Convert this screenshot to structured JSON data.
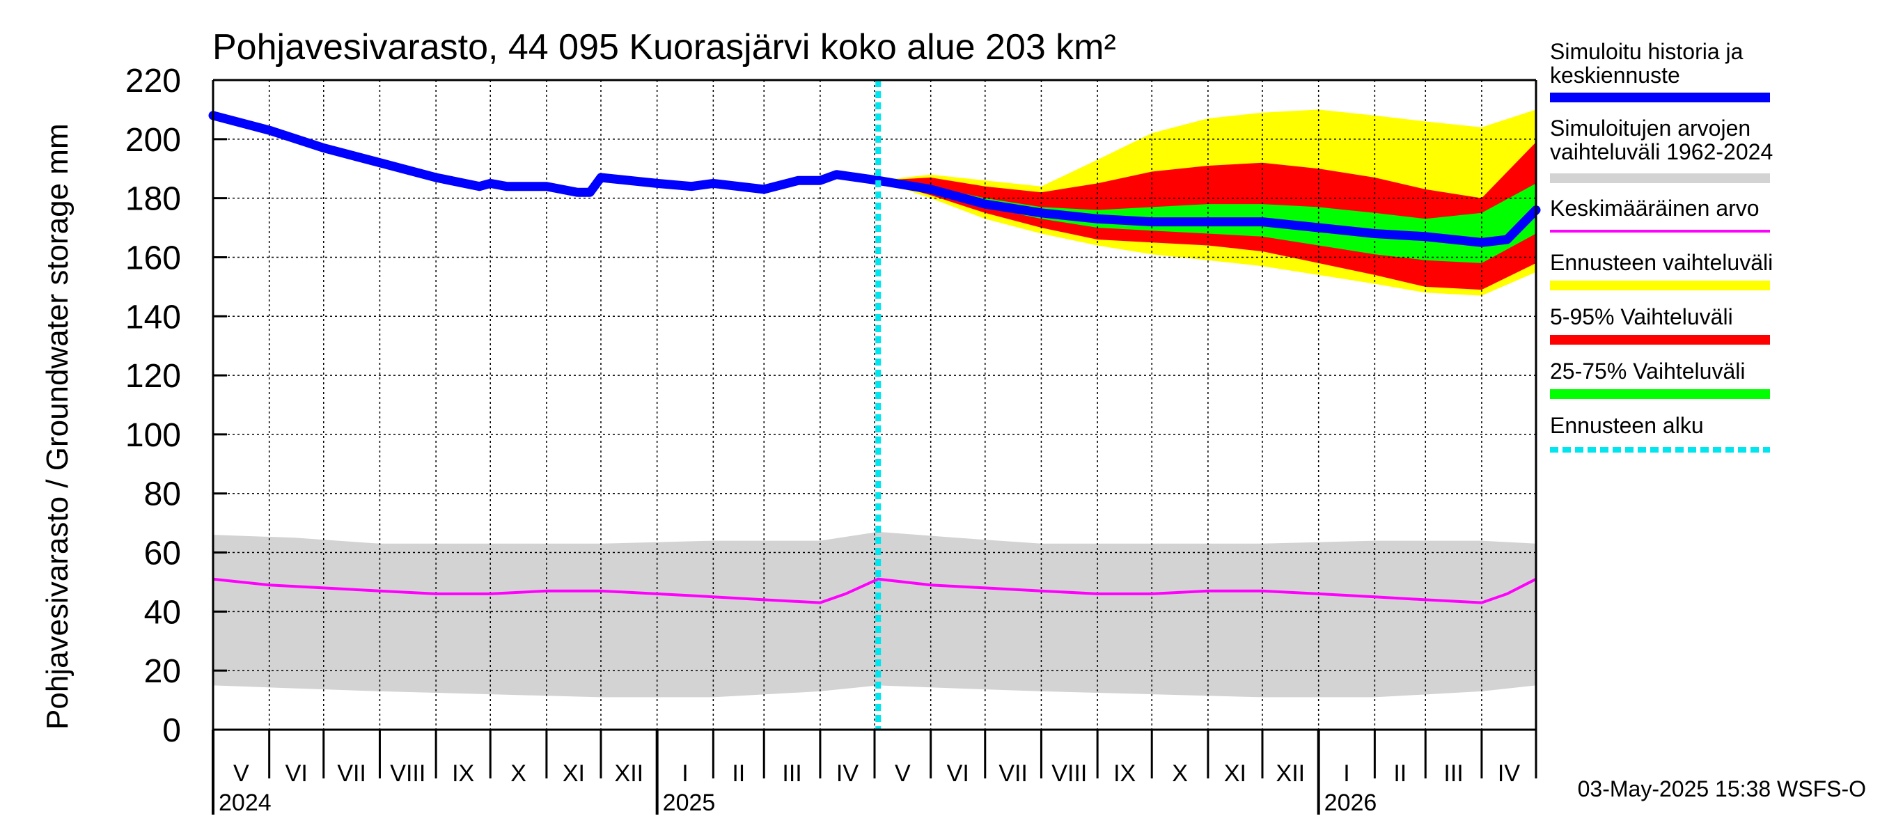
{
  "chart_data": {
    "type": "area",
    "title": "Pohjavesivarasto, 44 095 Kuorasjärvi koko alue 203 km²",
    "ylabel": "Pohjavesivarasto / Groundwater storage   mm",
    "ylim": [
      0,
      220
    ],
    "yticks": [
      "0",
      "20",
      "40",
      "60",
      "80",
      "100",
      "120",
      "140",
      "160",
      "180",
      "200",
      "220"
    ],
    "x_start": "2024-05-01",
    "x_end": "2026-05-01",
    "forecast_start": "2025-05-03",
    "grid": true,
    "months": [
      "V",
      "VI",
      "VII",
      "VIII",
      "IX",
      "X",
      "XI",
      "XII",
      "I",
      "II",
      "III",
      "IV",
      "V",
      "VI",
      "VII",
      "VIII",
      "IX",
      "X",
      "XI",
      "XII",
      "I",
      "II",
      "III",
      "IV"
    ],
    "years": [
      "2024",
      "2025",
      "2026"
    ],
    "legend_position": "right",
    "legend": [
      {
        "label": "Simuloitu historia ja keskiennuste",
        "color": "#0000ff",
        "style": "thick"
      },
      {
        "label": "Simuloitujen arvojen vaihteluväli 1962-2024",
        "color": "#d3d3d3",
        "style": "band"
      },
      {
        "label": "Keskimääräinen arvo",
        "color": "#ff00ff",
        "style": "line"
      },
      {
        "label": "Ennusteen vaihteluväli",
        "color": "#ffff00",
        "style": "band"
      },
      {
        "label": "5-95% Vaihteluväli",
        "color": "#ff0000",
        "style": "band"
      },
      {
        "label": "25-75% Vaihteluväli",
        "color": "#00ff00",
        "style": "band"
      },
      {
        "label": "Ennusteen alku",
        "color": "#00e5ee",
        "style": "dashed"
      }
    ],
    "series": [
      {
        "name": "Simuloitu historia ja keskiennuste",
        "x": [
          "2024-05-01",
          "2024-06-01",
          "2024-07-01",
          "2024-08-01",
          "2024-09-01",
          "2024-09-25",
          "2024-10-01",
          "2024-10-10",
          "2024-11-01",
          "2024-11-18",
          "2024-11-25",
          "2024-12-01",
          "2025-01-01",
          "2025-01-20",
          "2025-02-01",
          "2025-03-01",
          "2025-03-20",
          "2025-04-01",
          "2025-04-10",
          "2025-05-03",
          "2025-06-01",
          "2025-07-01",
          "2025-08-01",
          "2025-09-01",
          "2025-10-01",
          "2025-11-01",
          "2025-12-01",
          "2026-01-01",
          "2026-02-01",
          "2026-03-01",
          "2026-04-01",
          "2026-04-15",
          "2026-05-01"
        ],
        "y": [
          208,
          203,
          197,
          192,
          187,
          184,
          185,
          184,
          184,
          182,
          182,
          187,
          185,
          184,
          185,
          183,
          186,
          186,
          188,
          186,
          183,
          178,
          175,
          173,
          172,
          172,
          172,
          170,
          168,
          167,
          165,
          166,
          176
        ]
      },
      {
        "name": "Simuloitujen arvojen vaihteluväli 1962-2024 (yläraja)",
        "x": [
          "2024-05-01",
          "2024-06-15",
          "2024-08-01",
          "2024-10-01",
          "2024-12-01",
          "2025-02-01",
          "2025-04-01",
          "2025-05-03",
          "2025-06-15",
          "2025-08-01",
          "2025-10-01",
          "2025-12-01",
          "2026-02-01",
          "2026-04-01",
          "2026-05-01"
        ],
        "y": [
          66,
          65,
          63,
          63,
          63,
          64,
          64,
          67,
          65,
          63,
          63,
          63,
          64,
          64,
          63
        ]
      },
      {
        "name": "Simuloitujen arvojen vaihteluväli 1962-2024 (alaraja)",
        "x": [
          "2024-05-01",
          "2024-06-15",
          "2024-08-01",
          "2024-10-01",
          "2024-12-01",
          "2025-02-01",
          "2025-04-01",
          "2025-05-03",
          "2025-06-15",
          "2025-08-01",
          "2025-10-01",
          "2025-12-01",
          "2026-02-01",
          "2026-04-01",
          "2026-05-01"
        ],
        "y": [
          15,
          14,
          13,
          12,
          11,
          11,
          13,
          15,
          14,
          13,
          12,
          11,
          11,
          13,
          15
        ]
      },
      {
        "name": "Keskimääräinen arvo",
        "x": [
          "2024-05-01",
          "2024-06-01",
          "2024-07-01",
          "2024-08-01",
          "2024-09-01",
          "2024-10-01",
          "2024-11-01",
          "2024-12-01",
          "2025-01-01",
          "2025-02-01",
          "2025-03-01",
          "2025-04-01",
          "2025-04-15",
          "2025-05-03",
          "2025-06-01",
          "2025-07-01",
          "2025-08-01",
          "2025-09-01",
          "2025-10-01",
          "2025-11-01",
          "2025-12-01",
          "2026-01-01",
          "2026-02-01",
          "2026-03-01",
          "2026-04-01",
          "2026-04-15",
          "2026-05-01"
        ],
        "y": [
          51,
          49,
          48,
          47,
          46,
          46,
          47,
          47,
          46,
          45,
          44,
          43,
          46,
          51,
          49,
          48,
          47,
          46,
          46,
          47,
          47,
          46,
          45,
          44,
          43,
          46,
          51
        ]
      },
      {
        "name": "Ennusteen vaihteluväli (yläraja)",
        "x": [
          "2025-05-03",
          "2025-06-01",
          "2025-07-01",
          "2025-08-01",
          "2025-09-01",
          "2025-10-01",
          "2025-11-01",
          "2025-12-01",
          "2026-01-01",
          "2026-02-01",
          "2026-03-01",
          "2026-04-01",
          "2026-05-01"
        ],
        "y": [
          186,
          188,
          186,
          184,
          193,
          202,
          207,
          209,
          210,
          208,
          206,
          204,
          210
        ]
      },
      {
        "name": "Ennusteen vaihteluväli (alaraja)",
        "x": [
          "2025-05-03",
          "2025-06-01",
          "2025-07-01",
          "2025-08-01",
          "2025-09-01",
          "2025-10-01",
          "2025-11-01",
          "2025-12-01",
          "2026-01-01",
          "2026-02-01",
          "2026-03-01",
          "2026-04-01",
          "2026-05-01"
        ],
        "y": [
          186,
          180,
          173,
          168,
          164,
          161,
          159,
          157,
          154,
          151,
          148,
          147,
          155
        ]
      },
      {
        "name": "5-95% Vaihteluväli (yläraja)",
        "x": [
          "2025-05-03",
          "2025-06-01",
          "2025-07-01",
          "2025-08-01",
          "2025-09-01",
          "2025-10-01",
          "2025-11-01",
          "2025-12-01",
          "2026-01-01",
          "2026-02-01",
          "2026-03-01",
          "2026-04-01",
          "2026-05-01"
        ],
        "y": [
          186,
          187,
          184,
          182,
          185,
          189,
          191,
          192,
          190,
          187,
          183,
          180,
          199
        ]
      },
      {
        "name": "5-95% Vaihteluväli (alaraja)",
        "x": [
          "2025-05-03",
          "2025-06-01",
          "2025-07-01",
          "2025-08-01",
          "2025-09-01",
          "2025-10-01",
          "2025-11-01",
          "2025-12-01",
          "2026-01-01",
          "2026-02-01",
          "2026-03-01",
          "2026-04-01",
          "2026-05-01"
        ],
        "y": [
          186,
          181,
          175,
          170,
          166,
          165,
          164,
          162,
          158,
          154,
          150,
          149,
          158
        ]
      },
      {
        "name": "25-75% Vaihteluväli (yläraja)",
        "x": [
          "2025-05-03",
          "2025-06-01",
          "2025-07-01",
          "2025-08-01",
          "2025-09-01",
          "2025-10-01",
          "2025-11-01",
          "2025-12-01",
          "2026-01-01",
          "2026-02-01",
          "2026-03-01",
          "2026-04-01",
          "2026-05-01"
        ],
        "y": [
          186,
          184,
          180,
          177,
          176,
          177,
          178,
          178,
          177,
          175,
          173,
          175,
          185
        ]
      },
      {
        "name": "25-75% Vaihteluväli (alaraja)",
        "x": [
          "2025-05-03",
          "2025-06-01",
          "2025-07-01",
          "2025-08-01",
          "2025-09-01",
          "2025-10-01",
          "2025-11-01",
          "2025-12-01",
          "2026-01-01",
          "2026-02-01",
          "2026-03-01",
          "2026-04-01",
          "2026-05-01"
        ],
        "y": [
          186,
          182,
          177,
          173,
          170,
          169,
          168,
          167,
          164,
          161,
          159,
          158,
          168
        ]
      }
    ]
  },
  "footer": {
    "timestamp": "03-May-2025 15:38 WSFS-O"
  }
}
